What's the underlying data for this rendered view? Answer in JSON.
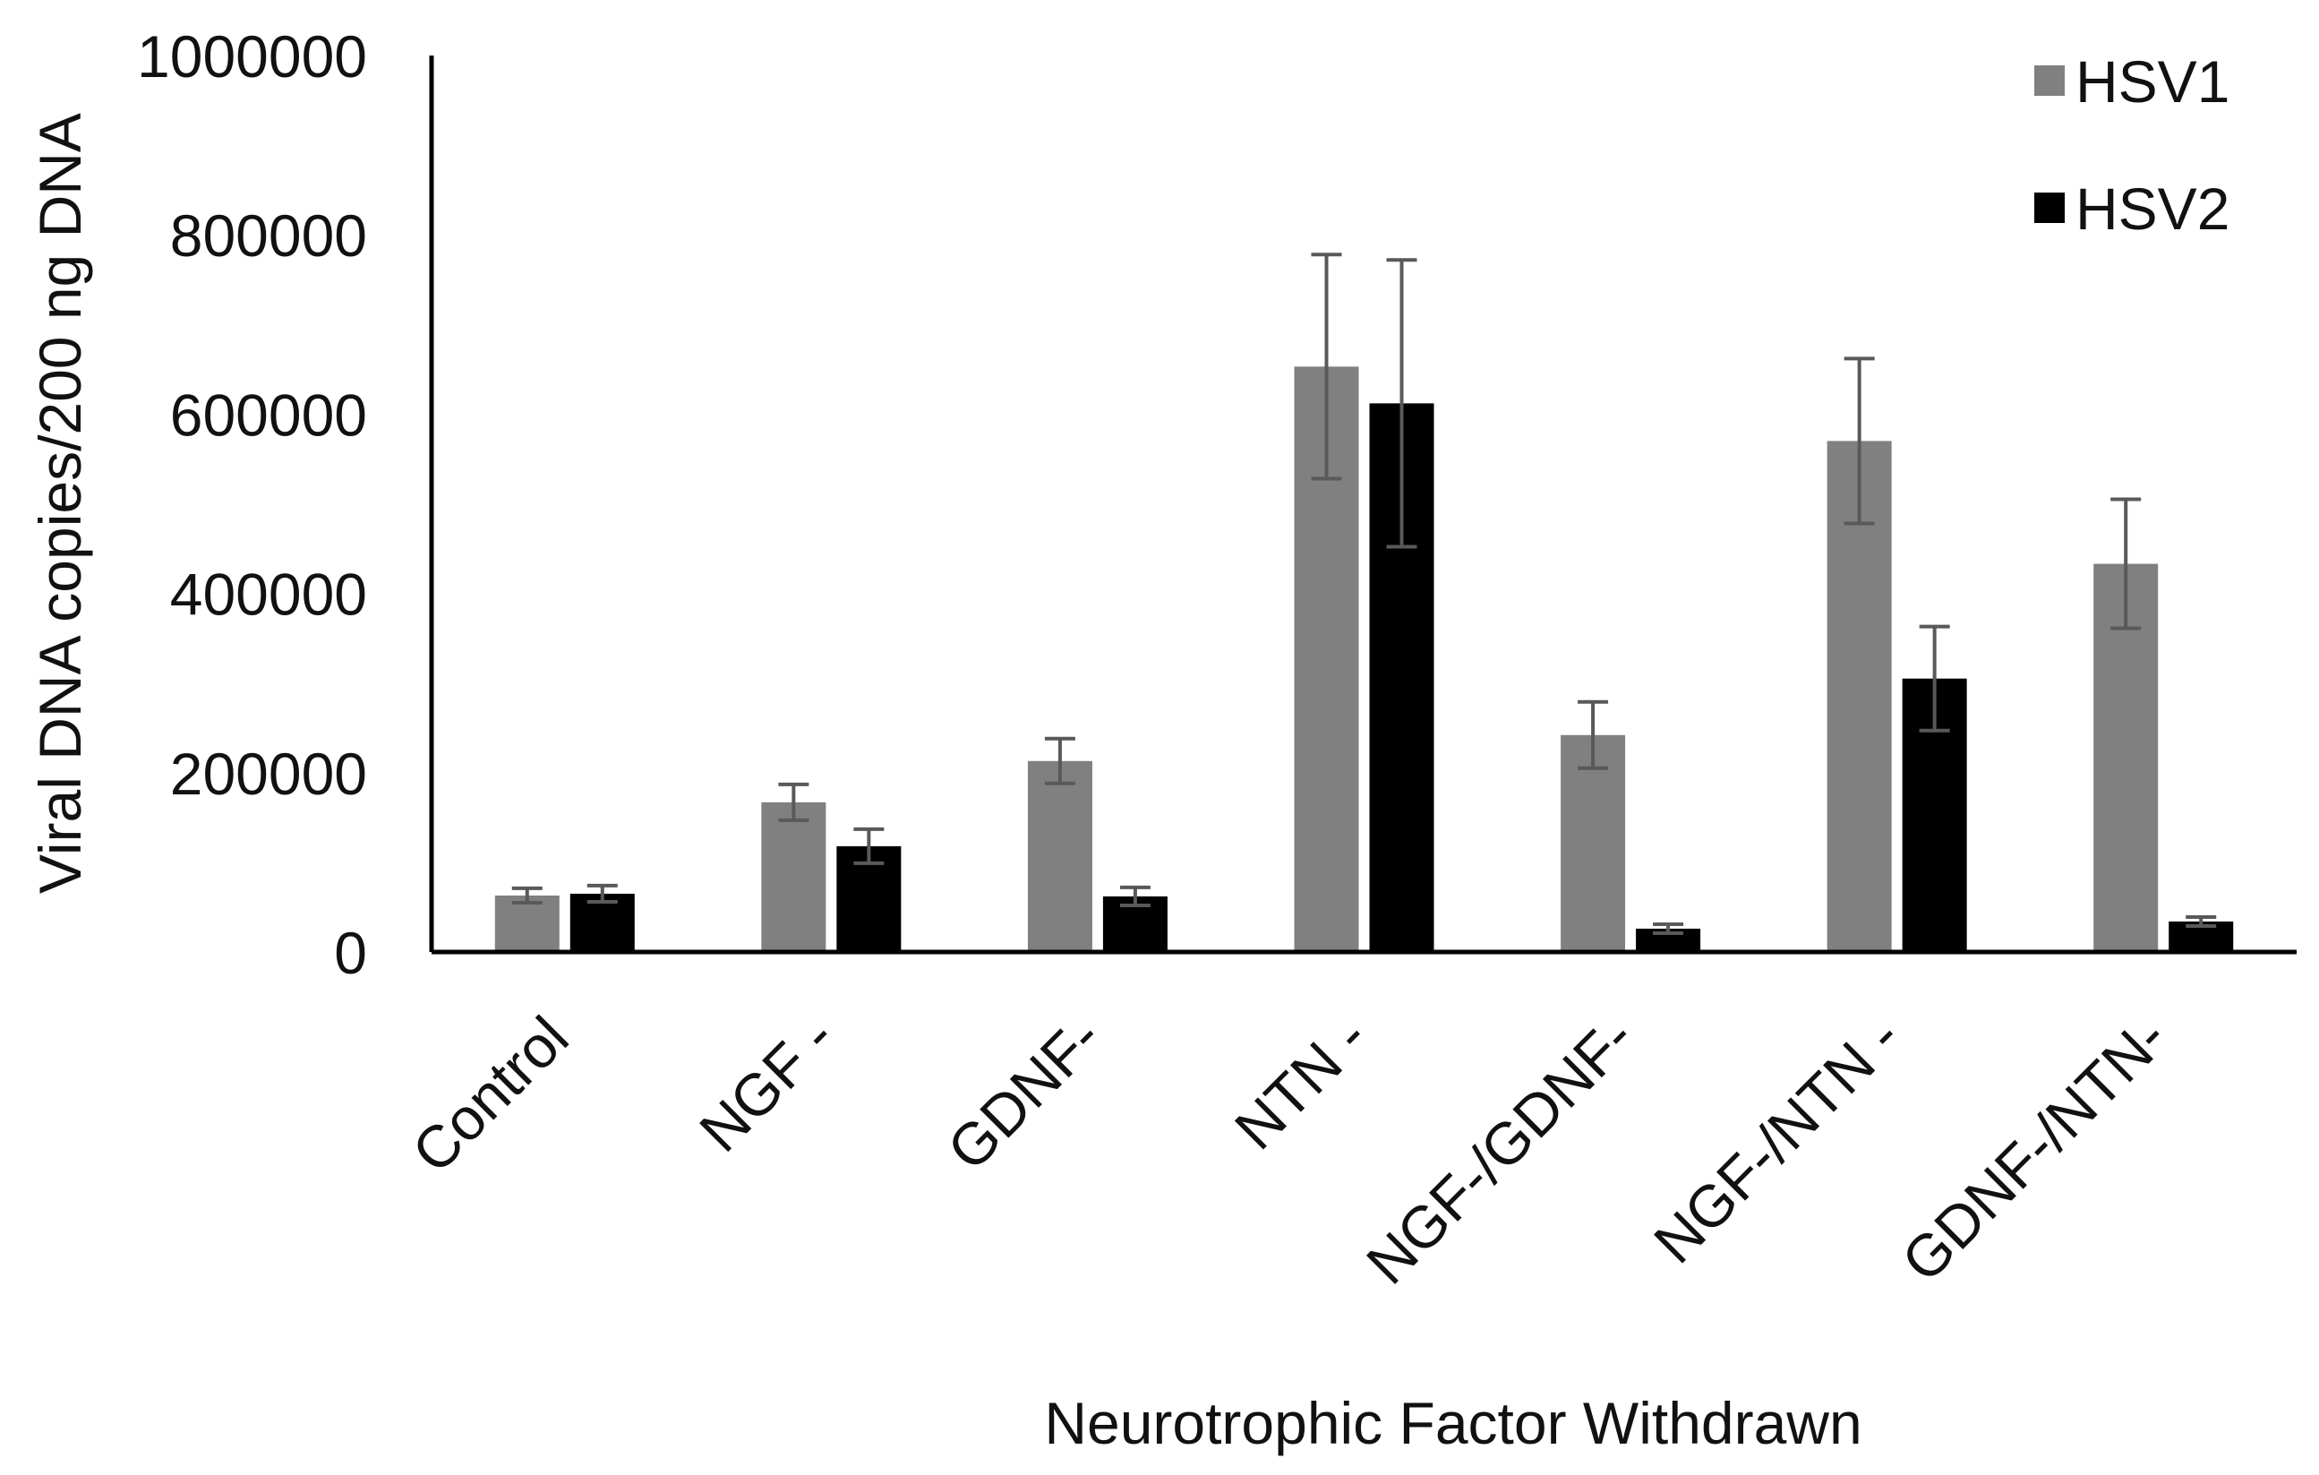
{
  "chart_data": {
    "type": "bar",
    "title": "",
    "xlabel": "Neurotrophic Factor Withdrawn",
    "ylabel": "Viral DNA copies/200 ng DNA",
    "ylim": [
      0,
      1000000
    ],
    "yticks": [
      0,
      200000,
      400000,
      600000,
      800000,
      1000000
    ],
    "ytick_labels": [
      "0",
      "200000",
      "400000",
      "600000",
      "800000",
      "1000000"
    ],
    "categories": [
      "Control",
      "NGF -",
      "GDNF-",
      "NTN -",
      "NGF-/GDNF-",
      "NGF-/NTN -",
      "GDNF-/NTN-"
    ],
    "series": [
      {
        "name": "HSV1",
        "color": "#808080",
        "values": [
          63000,
          167000,
          213000,
          653000,
          242000,
          570000,
          433000
        ],
        "errors": [
          8000,
          20000,
          25000,
          125000,
          37000,
          92000,
          72000
        ]
      },
      {
        "name": "HSV2",
        "color": "#000000",
        "values": [
          65000,
          118000,
          62000,
          612000,
          26000,
          305000,
          34000
        ],
        "errors": [
          9000,
          19000,
          10000,
          160000,
          5000,
          58000,
          5000
        ]
      }
    ],
    "error_bar_color": "#595959",
    "grid": false,
    "legend_position": "top-right"
  }
}
